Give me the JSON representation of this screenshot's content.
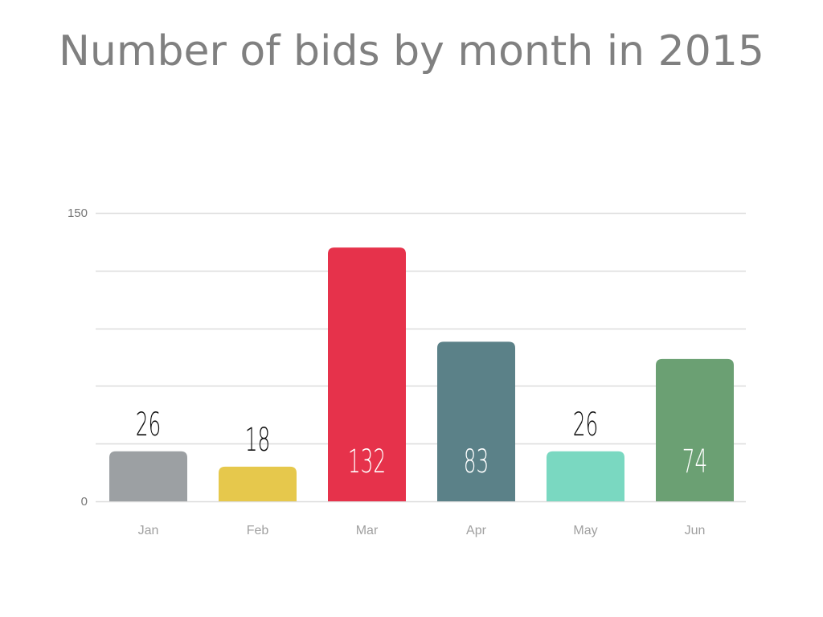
{
  "chart_data": {
    "type": "bar",
    "title": "Number of bids by month in 2015",
    "xlabel": "",
    "ylabel": "",
    "categories": [
      "Jan",
      "Feb",
      "Mar",
      "Apr",
      "May",
      "Jun"
    ],
    "values": [
      26,
      18,
      132,
      83,
      26,
      74
    ],
    "colors": [
      "#9ca0a3",
      "#e6c84c",
      "#e6324b",
      "#5b8188",
      "#7ad8c1",
      "#6ba073"
    ],
    "ylim": [
      0,
      150
    ],
    "yticks_labeled": [
      "0",
      "150"
    ],
    "gridlines": [
      0,
      30,
      60,
      90,
      120,
      150
    ],
    "grid": true,
    "legend": "none",
    "data_labels": true,
    "label_color_outside": "#111111",
    "label_color_inside": "#ffffff"
  }
}
